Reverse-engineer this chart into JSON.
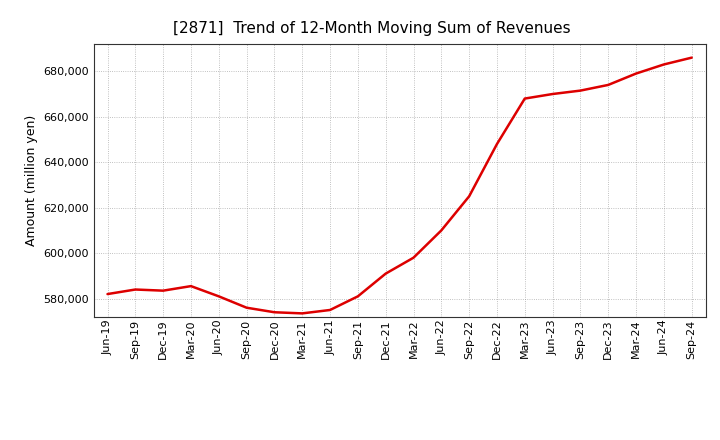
{
  "title": "[2871]  Trend of 12-Month Moving Sum of Revenues",
  "ylabel": "Amount (million yen)",
  "background_color": "#ffffff",
  "line_color": "#dd0000",
  "grid_color": "#999999",
  "x_labels": [
    "Jun-19",
    "Sep-19",
    "Dec-19",
    "Mar-20",
    "Jun-20",
    "Sep-20",
    "Dec-20",
    "Mar-21",
    "Jun-21",
    "Sep-21",
    "Dec-21",
    "Mar-22",
    "Jun-22",
    "Sep-22",
    "Dec-22",
    "Mar-23",
    "Jun-23",
    "Sep-23",
    "Dec-23",
    "Mar-24",
    "Jun-24",
    "Sep-24"
  ],
  "values": [
    582000,
    584000,
    583500,
    585500,
    581000,
    576000,
    574000,
    573500,
    575000,
    581000,
    591000,
    598000,
    610000,
    625000,
    648000,
    668000,
    670000,
    671500,
    674000,
    679000,
    683000,
    686000
  ],
  "ylim": [
    572000,
    692000
  ],
  "yticks": [
    580000,
    600000,
    620000,
    640000,
    660000,
    680000
  ],
  "title_fontsize": 11,
  "label_fontsize": 9,
  "tick_fontsize": 8
}
